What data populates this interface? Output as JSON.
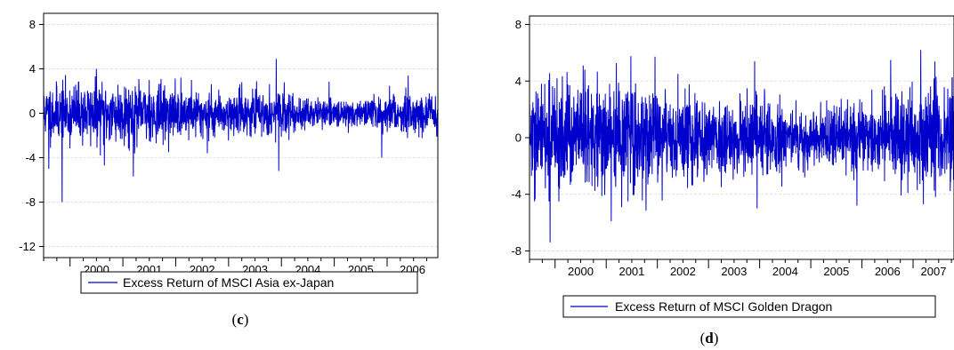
{
  "chart_data": [
    {
      "type": "line",
      "caption_open": "(",
      "caption_letter": "c",
      "caption_close": ")",
      "ylim": [
        -13,
        9
      ],
      "yticks": [
        8,
        4,
        0,
        -4,
        -8,
        -12
      ],
      "x_range": [
        1999.5,
        2006.96
      ],
      "x_ticks": [
        "2000",
        "2001",
        "2002",
        "2003",
        "2004",
        "2005",
        "2006"
      ],
      "grid": true,
      "legend_position": "bottom-center",
      "series": [
        {
          "name": "Excess Return of MSCI Asia ex-Japan",
          "color": "#0000cc",
          "sampling": "daily",
          "base_vol": 1.1,
          "vol_profile": [
            [
              1999.5,
              1.3
            ],
            [
              2001.0,
              1.5
            ],
            [
              2002.0,
              1.2
            ],
            [
              2003.0,
              1.0
            ],
            [
              2004.0,
              1.0
            ],
            [
              2004.5,
              0.7
            ],
            [
              2005.5,
              0.6
            ],
            [
              2006.3,
              1.0
            ],
            [
              2006.96,
              0.9
            ]
          ],
          "spikes": [
            {
              "x": 1999.6,
              "y": -5.0
            },
            {
              "x": 1999.75,
              "y": 2.4
            },
            {
              "x": 1999.85,
              "y": -8.0
            },
            {
              "x": 2000.5,
              "y": 4.0
            },
            {
              "x": 2000.65,
              "y": -4.7
            },
            {
              "x": 2001.2,
              "y": -5.7
            },
            {
              "x": 2001.5,
              "y": 3.0
            },
            {
              "x": 2002.3,
              "y": 3.0
            },
            {
              "x": 2002.6,
              "y": -3.6
            },
            {
              "x": 2003.25,
              "y": 2.8
            },
            {
              "x": 2003.9,
              "y": 4.9
            },
            {
              "x": 2003.95,
              "y": -5.2
            },
            {
              "x": 2005.9,
              "y": -4.0
            },
            {
              "x": 2006.4,
              "y": 3.4
            }
          ]
        }
      ]
    },
    {
      "type": "line",
      "caption_open": "(",
      "caption_letter": "d",
      "caption_close": ")",
      "ylim": [
        -8.6,
        8.6
      ],
      "yticks": [
        8,
        4,
        0,
        -4,
        -8
      ],
      "x_range": [
        1999.5,
        2007.8
      ],
      "x_ticks": [
        "2000",
        "2001",
        "2002",
        "2003",
        "2004",
        "2005",
        "2006",
        "2007"
      ],
      "grid": true,
      "legend_position": "bottom-center",
      "series": [
        {
          "name": "Excess Return of MSCI Golden Dragon",
          "color": "#0000cc",
          "sampling": "daily",
          "base_vol": 1.4,
          "vol_profile": [
            [
              1999.5,
              1.4
            ],
            [
              2000.3,
              1.5
            ],
            [
              2001.0,
              1.6
            ],
            [
              2002.0,
              1.4
            ],
            [
              2003.0,
              1.2
            ],
            [
              2004.2,
              1.2
            ],
            [
              2004.5,
              0.9
            ],
            [
              2005.5,
              0.8
            ],
            [
              2006.5,
              1.1
            ],
            [
              2007.3,
              1.6
            ],
            [
              2007.8,
              1.5
            ]
          ],
          "spikes": [
            {
              "x": 1999.6,
              "y": -4.5
            },
            {
              "x": 1999.8,
              "y": 3.8
            },
            {
              "x": 1999.9,
              "y": -7.4
            },
            {
              "x": 2000.55,
              "y": 5.1
            },
            {
              "x": 2001.1,
              "y": -5.9
            },
            {
              "x": 2002.4,
              "y": 4.5
            },
            {
              "x": 2003.25,
              "y": -3.5
            },
            {
              "x": 2003.9,
              "y": 5.4
            },
            {
              "x": 2003.95,
              "y": -5.0
            },
            {
              "x": 2005.9,
              "y": -4.8
            },
            {
              "x": 2006.4,
              "y": 3.4
            },
            {
              "x": 2007.15,
              "y": 6.2
            },
            {
              "x": 2007.2,
              "y": -4.7
            },
            {
              "x": 2007.45,
              "y": 4.3
            }
          ]
        }
      ]
    }
  ]
}
